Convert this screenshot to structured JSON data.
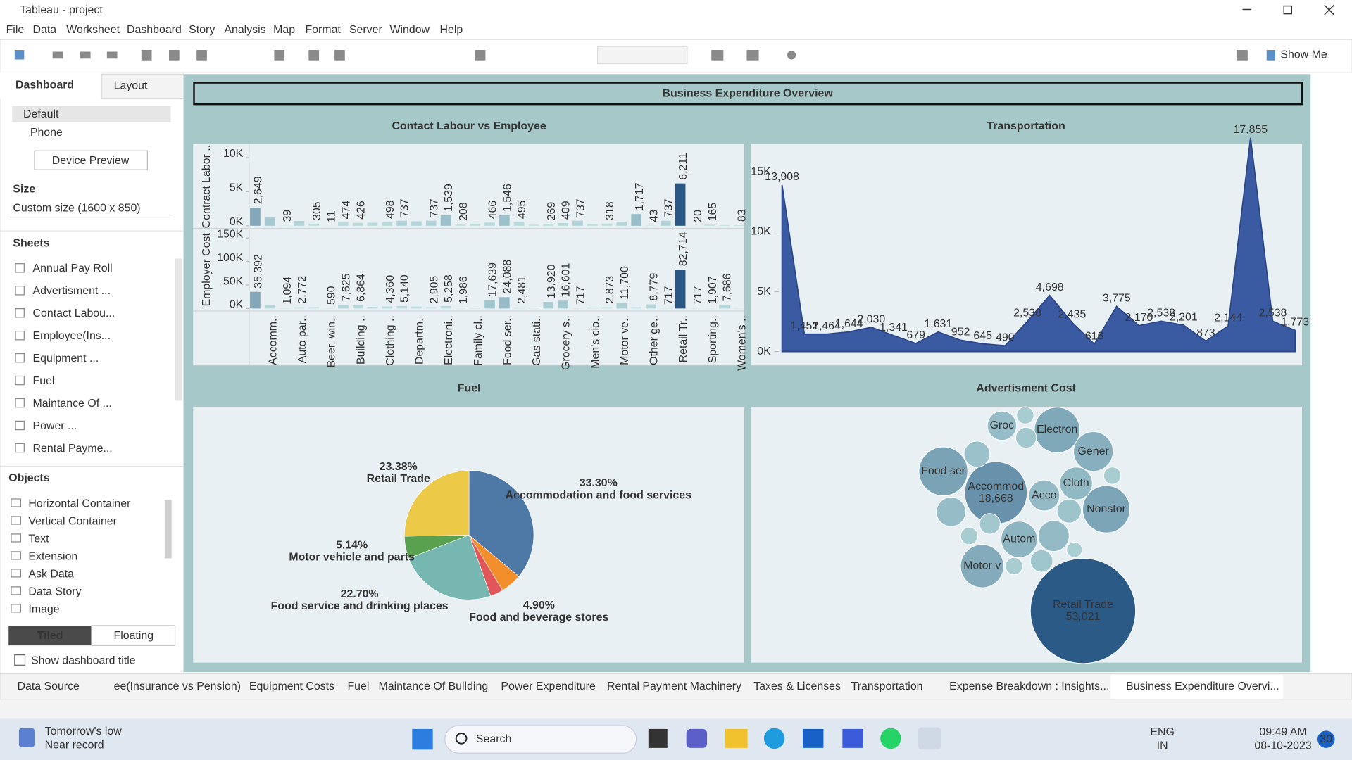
{
  "window": {
    "title": "Tableau - project"
  },
  "menu": [
    "File",
    "Data",
    "Worksheet",
    "Dashboard",
    "Story",
    "Analysis",
    "Map",
    "Format",
    "Server",
    "Window",
    "Help"
  ],
  "toolbar": {
    "show_me": "Show Me"
  },
  "sidebar": {
    "tabs": [
      "Dashboard",
      "Layout"
    ],
    "devices": [
      "Default",
      "Phone"
    ],
    "device_preview": "Device Preview",
    "size_heading": "Size",
    "size": "Custom size (1600 x 850)",
    "sheets_heading": "Sheets",
    "sheets": [
      "Annual Pay Roll",
      "Advertisment ...",
      "Contact Labou...",
      "Employee(Ins...",
      "Equipment ...",
      "Fuel",
      "Maintance Of ...",
      "Power ...",
      "Rental Payme..."
    ],
    "objects_heading": "Objects",
    "objects": [
      "Horizontal Container",
      "Vertical Container",
      "Text",
      "Extension",
      "Ask Data",
      "Data Story",
      "Image"
    ],
    "layout_modes": [
      "Tiled",
      "Floating"
    ],
    "show_title": "Show dashboard title"
  },
  "dashboard": {
    "title": "Business Expenditure Overview"
  },
  "chart_data": [
    {
      "type": "bar",
      "title": "Contact Labour vs Employee",
      "categories": [
        null,
        "Accomm..",
        null,
        "Auto par..",
        null,
        "Beer, win..",
        null,
        "Building ..",
        null,
        "Clothing ..",
        null,
        "Departm..",
        null,
        "Electroni..",
        null,
        "Family cl..",
        null,
        "Food ser..",
        null,
        "Gas stati..",
        null,
        "Grocery s..",
        null,
        "Men's clo..",
        null,
        "Motor ve..",
        null,
        "Other ge..",
        null,
        "Retail Tr..",
        null,
        "Sporting..",
        null,
        "Women's .."
      ],
      "color_range": [
        "#c3e4e2",
        "#2a5783"
      ],
      "series": [
        {
          "name": "Contract Labor ..",
          "ylim": [
            0,
            11500
          ],
          "yticks": [
            {
              "value": 0,
              "label": "0K"
            },
            {
              "value": 5000,
              "label": "5K"
            },
            {
              "value": 10000,
              "label": "10K"
            }
          ],
          "values": [
            2649,
            1200,
            39,
            700,
            305,
            11,
            474,
            426,
            450,
            498,
            737,
            650,
            737,
            1539,
            208,
            300,
            466,
            1546,
            495,
            150,
            269,
            409,
            737,
            250,
            318,
            600,
            1717,
            43,
            737,
            6211,
            20,
            165,
            100,
            83
          ],
          "value_labels": [
            "2,649",
            null,
            "39",
            null,
            "305",
            "11",
            "474",
            "426",
            null,
            "498",
            "737",
            null,
            "737",
            "1,539",
            "208",
            null,
            "466",
            "1,546",
            "495",
            null,
            "269",
            "409",
            "737",
            null,
            "318",
            null,
            "1,717",
            "43",
            "737",
            "6,211",
            "20",
            "165",
            null,
            "83"
          ]
        },
        {
          "name": "Employer Cost",
          "ylim": [
            0,
            165000
          ],
          "yticks": [
            {
              "value": 0,
              "label": "0K"
            },
            {
              "value": 50000,
              "label": "50K"
            },
            {
              "value": 100000,
              "label": "100K"
            },
            {
              "value": 150000,
              "label": "150K"
            }
          ],
          "values": [
            35392,
            8000,
            1094,
            2772,
            3000,
            590,
            7625,
            6864,
            3500,
            4360,
            5140,
            4000,
            2905,
            5258,
            1986,
            1500,
            17639,
            24088,
            2481,
            2000,
            13920,
            16601,
            717,
            2500,
            2873,
            11700,
            3000,
            8779,
            717,
            82714,
            717,
            1907,
            7686,
            500
          ],
          "value_labels": [
            "35,392",
            null,
            "1,094",
            "2,772",
            null,
            "590",
            "7,625",
            "6,864",
            null,
            "4,360",
            "5,140",
            null,
            "2,905",
            "5,258",
            "1,986",
            null,
            "17,639",
            "24,088",
            "2,481",
            null,
            "13,920",
            "16,601",
            "717",
            null,
            "2,873",
            "11,700",
            null,
            "8,779",
            "717",
            "82,714",
            "717",
            "1,907",
            "7,686",
            null
          ]
        }
      ]
    },
    {
      "type": "area",
      "title": "Transportation",
      "color": "#3a5ba2",
      "categories": [
        null,
        null,
        null,
        null,
        null,
        null,
        null,
        null,
        null,
        null,
        null,
        null,
        null,
        null,
        null,
        null,
        null,
        null,
        null,
        null,
        null,
        null,
        null,
        null
      ],
      "values": [
        13908,
        1452,
        1464,
        1644,
        2030,
        1341,
        679,
        1631,
        952,
        645,
        490,
        2538,
        4698,
        2435,
        616,
        3775,
        2170,
        2538,
        2201,
        873,
        2144,
        17855,
        2538,
        1773
      ],
      "value_labels": [
        "13,908",
        "1,452",
        "1,464",
        "1,644",
        "2,030",
        "1,341",
        "679",
        "1,631",
        "952",
        "645",
        "490",
        "2,538",
        "4,698",
        "2,435",
        "616",
        "3,775",
        "2,170",
        "2,538",
        "2,201",
        "873",
        "2,144",
        "17,855",
        "2,538",
        "1,773"
      ],
      "ylim": [
        0,
        18000
      ],
      "yticks": [
        {
          "value": 0,
          "label": "0K"
        },
        {
          "value": 5000,
          "label": "5K"
        },
        {
          "value": 10000,
          "label": "10K"
        },
        {
          "value": 15000,
          "label": "15K"
        }
      ]
    },
    {
      "type": "pie",
      "title": "Fuel",
      "categories": [
        "Accommodation and food services",
        "Food and beverage stores",
        null,
        "Food service and drinking places",
        "Motor vehicle and parts",
        "Retail Trade"
      ],
      "values": [
        33.3,
        4.9,
        3,
        22.7,
        5.14,
        23.38
      ],
      "value_labels": [
        "33.30%",
        "4.90%",
        null,
        "22.70%",
        "5.14%",
        "23.38%"
      ],
      "colors": [
        "#4e79a7",
        "#f28e2b",
        "#e15759",
        "#76b7b2",
        "#59a14f",
        "#edc948"
      ]
    },
    {
      "type": "bubble",
      "title": "Advertisment Cost",
      "color_range": [
        "#bfe3e0",
        "#2c5a86"
      ],
      "categories": [
        "Retail Trade",
        "Accommod",
        "Food ser",
        "Electron",
        "Nonstor",
        "Motor v",
        "Gener",
        "Autom",
        "Cloth",
        "Acco",
        "Groc",
        null,
        null,
        null,
        null,
        null,
        null,
        null,
        null,
        null,
        null,
        null,
        null
      ],
      "values": [
        53021,
        18668,
        11400,
        9900,
        10700,
        8900,
        7500,
        6300,
        5100,
        4600,
        4100,
        3206,
        1425,
        2052,
        4118,
        2052,
        1425,
        4617,
        2794,
        1154,
        2408,
        1425,
        1425
      ],
      "value_labels": [
        "53,021",
        "18,668",
        null,
        null,
        null,
        null,
        null,
        null,
        null,
        null,
        null,
        null,
        null,
        null,
        null,
        null,
        null,
        null,
        null,
        null,
        null,
        null,
        null
      ]
    }
  ],
  "sheet_tabs": [
    "Data Source",
    "ee(Insurance vs Pension)",
    "Equipment Costs",
    "Fuel",
    "Maintance Of Building",
    "Power Expenditure",
    "Rental Payment Machinery",
    "Taxes & Licenses",
    "Transportation",
    "Expense Breakdown : Insights...",
    "Business Expenditure Overvi..."
  ],
  "taskbar": {
    "weather": [
      "Tomorrow's low",
      "Near record"
    ],
    "search": "Search",
    "language": [
      "ENG",
      "IN"
    ],
    "time": "09:49 AM",
    "date": "08-10-2023",
    "badge": "30"
  }
}
